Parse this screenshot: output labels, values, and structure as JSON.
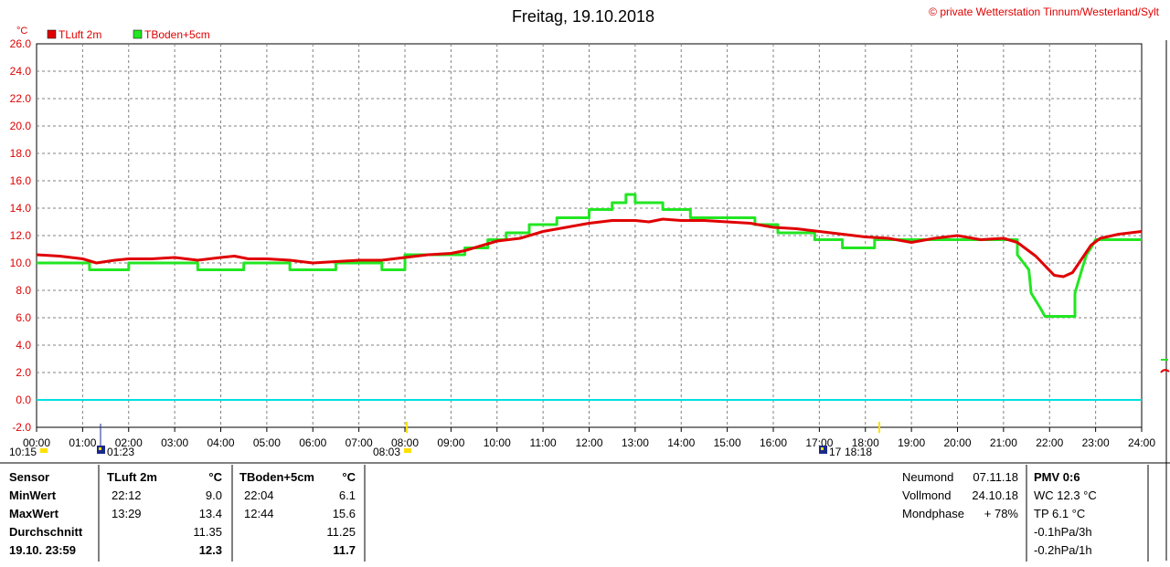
{
  "header": {
    "title": "Freitag, 19.10.2018",
    "copyright": "© private Wetterstation Tinnum/Westerland/Sylt"
  },
  "chart_data": {
    "type": "line",
    "title": "Freitag, 19.10.2018",
    "ylabel": "°C",
    "xlabel": "",
    "xlim": [
      0,
      24
    ],
    "ylim": [
      -2,
      26
    ],
    "grid": true,
    "legend_position": "top-left",
    "x_ticks": [
      "00:00",
      "01:00",
      "02:00",
      "03:00",
      "04:00",
      "05:00",
      "06:00",
      "07:00",
      "08:00",
      "09:00",
      "10:00",
      "11:00",
      "12:00",
      "13:00",
      "14:00",
      "15:00",
      "16:00",
      "17:00",
      "18:00",
      "19:00",
      "20:00",
      "21:00",
      "22:00",
      "23:00",
      "24:00"
    ],
    "y_ticks": [
      "26.0",
      "24.0",
      "22.0",
      "20.0",
      "18.0",
      "16.0",
      "14.0",
      "12.0",
      "10.0",
      "8.0",
      "6.0",
      "4.0",
      "2.0",
      "0.0",
      "-2.0"
    ],
    "series": [
      {
        "name": "TLuft 2m",
        "color": "#e00000",
        "x": [
          0,
          0.5,
          1.0,
          1.3,
          1.7,
          2.0,
          2.5,
          3.0,
          3.5,
          4.0,
          4.3,
          4.6,
          5.0,
          5.5,
          6.0,
          6.5,
          7.0,
          7.5,
          8.0,
          8.5,
          9.0,
          9.3,
          9.6,
          10.0,
          10.5,
          11.0,
          11.5,
          12.0,
          12.5,
          13.0,
          13.3,
          13.6,
          14.0,
          14.5,
          15.0,
          15.5,
          16.0,
          16.5,
          17.0,
          17.5,
          18.0,
          18.5,
          19.0,
          19.5,
          20.0,
          20.5,
          21.0,
          21.3,
          21.5,
          21.7,
          21.9,
          22.1,
          22.3,
          22.5,
          22.7,
          22.9,
          23.1,
          23.5,
          24.0
        ],
        "values": [
          10.6,
          10.5,
          10.3,
          10.0,
          10.2,
          10.3,
          10.3,
          10.4,
          10.2,
          10.4,
          10.5,
          10.3,
          10.3,
          10.2,
          10.0,
          10.1,
          10.2,
          10.2,
          10.4,
          10.6,
          10.7,
          10.9,
          11.2,
          11.6,
          11.8,
          12.3,
          12.6,
          12.9,
          13.1,
          13.1,
          13.0,
          13.2,
          13.1,
          13.1,
          13.0,
          12.9,
          12.6,
          12.5,
          12.3,
          12.1,
          11.9,
          11.8,
          11.5,
          11.8,
          12.0,
          11.7,
          11.8,
          11.5,
          11.0,
          10.5,
          9.8,
          9.1,
          9.0,
          9.3,
          10.3,
          11.3,
          11.8,
          12.1,
          12.3
        ]
      },
      {
        "name": "TBoden+5cm",
        "color": "#22e622",
        "x": [
          0,
          1.15,
          1.15,
          2.0,
          2.0,
          3.5,
          3.5,
          4.5,
          4.5,
          5.5,
          5.5,
          6.5,
          6.5,
          7.5,
          7.5,
          8.0,
          8.0,
          9.3,
          9.3,
          9.8,
          9.8,
          10.2,
          10.2,
          10.7,
          10.7,
          11.3,
          11.3,
          12.0,
          12.0,
          12.5,
          12.5,
          12.8,
          12.8,
          13.0,
          13.0,
          13.6,
          13.6,
          14.2,
          14.2,
          15.6,
          15.6,
          16.1,
          16.1,
          16.5,
          16.5,
          16.9,
          16.9,
          17.5,
          17.5,
          18.2,
          18.2,
          19.0,
          19.0,
          21.3,
          21.3,
          21.55,
          21.6,
          21.8,
          21.9,
          22.2,
          22.2,
          22.55,
          22.55,
          22.7,
          22.8,
          22.9,
          23.0,
          23.4,
          24.0
        ],
        "values": [
          10.0,
          10.0,
          9.5,
          9.5,
          10.0,
          10.0,
          9.5,
          9.5,
          10.0,
          10.0,
          9.5,
          9.5,
          10.0,
          10.0,
          9.5,
          9.5,
          10.6,
          10.6,
          11.1,
          11.1,
          11.7,
          11.7,
          12.2,
          12.2,
          12.8,
          12.8,
          13.3,
          13.3,
          13.9,
          13.9,
          14.4,
          14.4,
          15.0,
          15.0,
          14.4,
          14.4,
          13.9,
          13.9,
          13.3,
          13.3,
          12.8,
          12.8,
          12.2,
          12.2,
          12.2,
          12.2,
          11.7,
          11.7,
          11.1,
          11.1,
          11.7,
          11.7,
          11.7,
          11.7,
          10.6,
          9.5,
          7.8,
          6.7,
          6.1,
          6.1,
          6.1,
          6.1,
          7.8,
          9.5,
          10.6,
          11.1,
          11.7,
          11.7,
          11.7
        ]
      },
      {
        "name": "",
        "color": "#00e0e0",
        "x": [
          0,
          24
        ],
        "values": [
          0,
          0
        ]
      }
    ],
    "legend": [
      {
        "label": "TLuft 2m",
        "color": "#e00000"
      },
      {
        "label": "TBoden+5cm",
        "color": "#22e622"
      }
    ],
    "markers": {
      "sunrise": {
        "hour": 8.05,
        "label": "08:03"
      },
      "sunset": {
        "hour": 18.3,
        "label": "18:18"
      },
      "moonrise": {
        "hour": 1.38,
        "label": "01:23"
      },
      "moonset": {
        "hour": 17.0,
        "label": "17"
      },
      "left_time": {
        "hour": 0.0,
        "label": "10:15"
      }
    }
  },
  "table": {
    "labels": [
      "Sensor",
      "MinWert",
      "MaxWert",
      "Durchschnitt",
      "19.10. 23:59"
    ],
    "col1": {
      "header": "TLuft 2m",
      "unit": "°C",
      "min_time": "22:12",
      "min_val": "9.0",
      "max_time": "13:29",
      "max_val": "13.4",
      "avg": "11.35",
      "last": "12.3"
    },
    "col2": {
      "header": "TBoden+5cm",
      "unit": "°C",
      "min_time": "22:04",
      "min_val": "6.1",
      "max_time": "12:44",
      "max_val": "15.6",
      "avg": "11.25",
      "last": "11.7"
    },
    "moon": {
      "neumond_label": "Neumond",
      "neumond_date": "07.11.18",
      "vollmond_label": "Vollmond",
      "vollmond_date": "24.10.18",
      "phase_label": "Mondphase",
      "phase_value": "+ 78%"
    },
    "pmv": {
      "title": "PMV 0:6",
      "wc": "WC 12.3 °C",
      "tp": "TP 6.1 °C",
      "p3h": "-0.1hPa/3h",
      "p1h": "-0.2hPa/1h"
    }
  }
}
